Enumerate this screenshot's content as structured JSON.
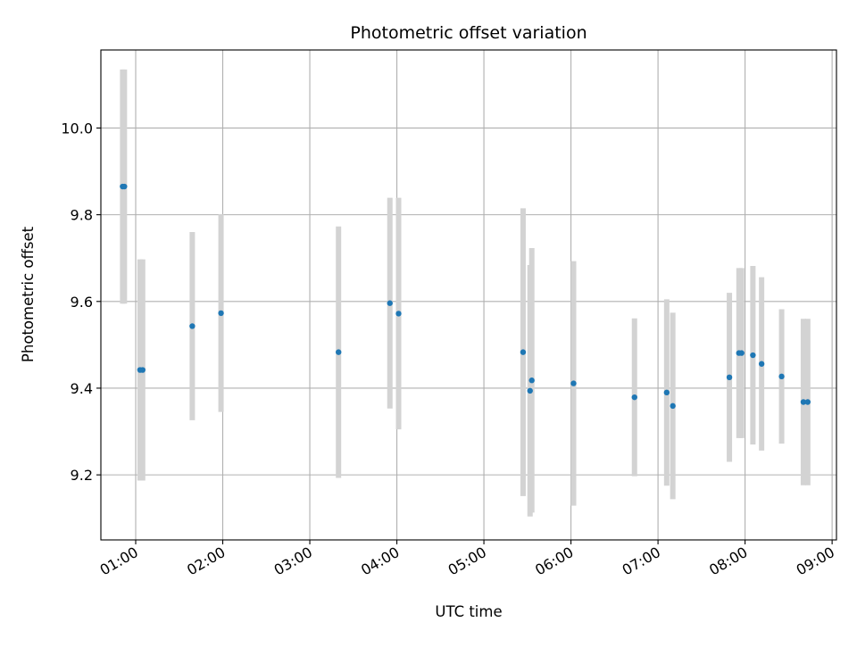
{
  "chart_data": {
    "type": "scatter",
    "title": "Photometric offset variation",
    "xlabel": "UTC time",
    "ylabel": "Photometric offset",
    "x_unit": "hours UTC",
    "xlim": [
      0.6,
      9.05
    ],
    "ylim": [
      9.05,
      10.18
    ],
    "x_ticks": [
      1,
      2,
      3,
      4,
      5,
      6,
      7,
      8,
      9
    ],
    "x_tick_labels": [
      "01:00",
      "02:00",
      "03:00",
      "04:00",
      "05:00",
      "06:00",
      "07:00",
      "08:00",
      "09:00"
    ],
    "y_ticks": [
      9.2,
      9.4,
      9.6,
      9.8,
      10.0
    ],
    "y_tick_labels": [
      "9.2",
      "9.4",
      "9.6",
      "9.8",
      "10.0"
    ],
    "grid": true,
    "colors": {
      "point": "#1f77b4",
      "errorbar": "#d3d3d3",
      "grid": "#b0b0b0"
    },
    "points": [
      {
        "x": 0.85,
        "y": 9.865,
        "err": 0.27
      },
      {
        "x": 0.87,
        "y": 9.865,
        "err": 0.27
      },
      {
        "x": 1.05,
        "y": 9.442,
        "err": 0.255
      },
      {
        "x": 1.08,
        "y": 9.442,
        "err": 0.255
      },
      {
        "x": 1.65,
        "y": 9.543,
        "err": 0.217
      },
      {
        "x": 1.98,
        "y": 9.573,
        "err": 0.228
      },
      {
        "x": 3.33,
        "y": 9.483,
        "err": 0.29
      },
      {
        "x": 3.92,
        "y": 9.596,
        "err": 0.243
      },
      {
        "x": 4.02,
        "y": 9.572,
        "err": 0.267
      },
      {
        "x": 5.45,
        "y": 9.483,
        "err": 0.332
      },
      {
        "x": 5.53,
        "y": 9.394,
        "err": 0.29
      },
      {
        "x": 5.55,
        "y": 9.418,
        "err": 0.305
      },
      {
        "x": 6.03,
        "y": 9.411,
        "err": 0.282
      },
      {
        "x": 6.73,
        "y": 9.379,
        "err": 0.182
      },
      {
        "x": 7.1,
        "y": 9.39,
        "err": 0.215
      },
      {
        "x": 7.17,
        "y": 9.359,
        "err": 0.215
      },
      {
        "x": 7.82,
        "y": 9.425,
        "err": 0.195
      },
      {
        "x": 7.93,
        "y": 9.481,
        "err": 0.196
      },
      {
        "x": 7.96,
        "y": 9.481,
        "err": 0.196
      },
      {
        "x": 8.09,
        "y": 9.476,
        "err": 0.206
      },
      {
        "x": 8.19,
        "y": 9.456,
        "err": 0.2
      },
      {
        "x": 8.42,
        "y": 9.427,
        "err": 0.155
      },
      {
        "x": 8.67,
        "y": 9.368,
        "err": 0.192
      },
      {
        "x": 8.72,
        "y": 9.368,
        "err": 0.192
      }
    ]
  }
}
